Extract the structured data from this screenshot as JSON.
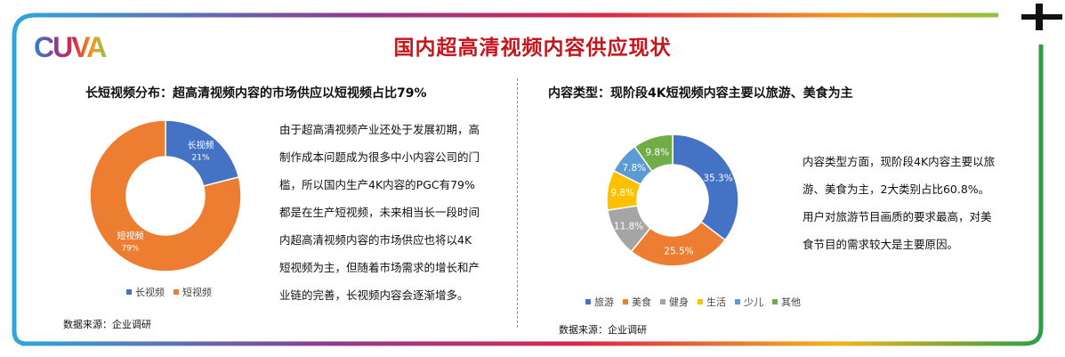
{
  "logo_text": "CUVA",
  "main_title": "国内超高清视频内容供应现状",
  "left_panel": {
    "title": "长短视频分布：超高清视频内容的市场供应以短视频占比79%",
    "paragraph_lines": [
      "由于超高清视频产业还处于发展初期，高",
      "制作成本问题成为很多中小内容公司的门",
      "槛，所以国内生产4K内容的PGC有79%",
      "都是在生产短视频，未来相当长一段时间",
      "内超高清视频内容的市场供应也将以4K",
      "短视频为主，但随着市场需求的增长和产",
      "业链的完善，长视频内容会逐渐增多。"
    ],
    "source": "数据来源：企业调研"
  },
  "right_panel": {
    "title": "内容类型：现阶段4K短视频内容主要以旅游、美食为主",
    "paragraph_lines": [
      "内容类型方面，现阶段4K内容主要以旅",
      "游、美食为主，2大类别占比60.8%。",
      "用户对旅游节目画质的要求最高，对美",
      "食节目的需求较大是主要原因。"
    ],
    "source": "数据来源：企业调研"
  },
  "colors": {
    "title_red": "#c4161c",
    "blue": "#4472c4",
    "orange": "#ed7d31",
    "gray": "#a5a5a5",
    "yellow": "#ffc000",
    "lightblue": "#5b9bd5",
    "green": "#70ad47"
  },
  "chart_data": [
    {
      "type": "pie",
      "donut": true,
      "categories": [
        "长视频",
        "短视频"
      ],
      "values": [
        21,
        79
      ],
      "labels": [
        "21%",
        "79%"
      ],
      "colors": [
        "#4472c4",
        "#ed7d31"
      ],
      "legend": "bottom"
    },
    {
      "type": "pie",
      "donut": true,
      "categories": [
        "旅游",
        "美食",
        "健身",
        "生活",
        "少儿",
        "其他"
      ],
      "values": [
        35.3,
        25.5,
        11.8,
        9.8,
        7.8,
        9.8
      ],
      "labels": [
        "35.3%",
        "25.5%",
        "11.8%",
        "9.8%",
        "7.8%",
        "9.8%"
      ],
      "colors": [
        "#4472c4",
        "#ed7d31",
        "#a5a5a5",
        "#ffc000",
        "#5b9bd5",
        "#70ad47"
      ],
      "legend": "bottom"
    }
  ]
}
